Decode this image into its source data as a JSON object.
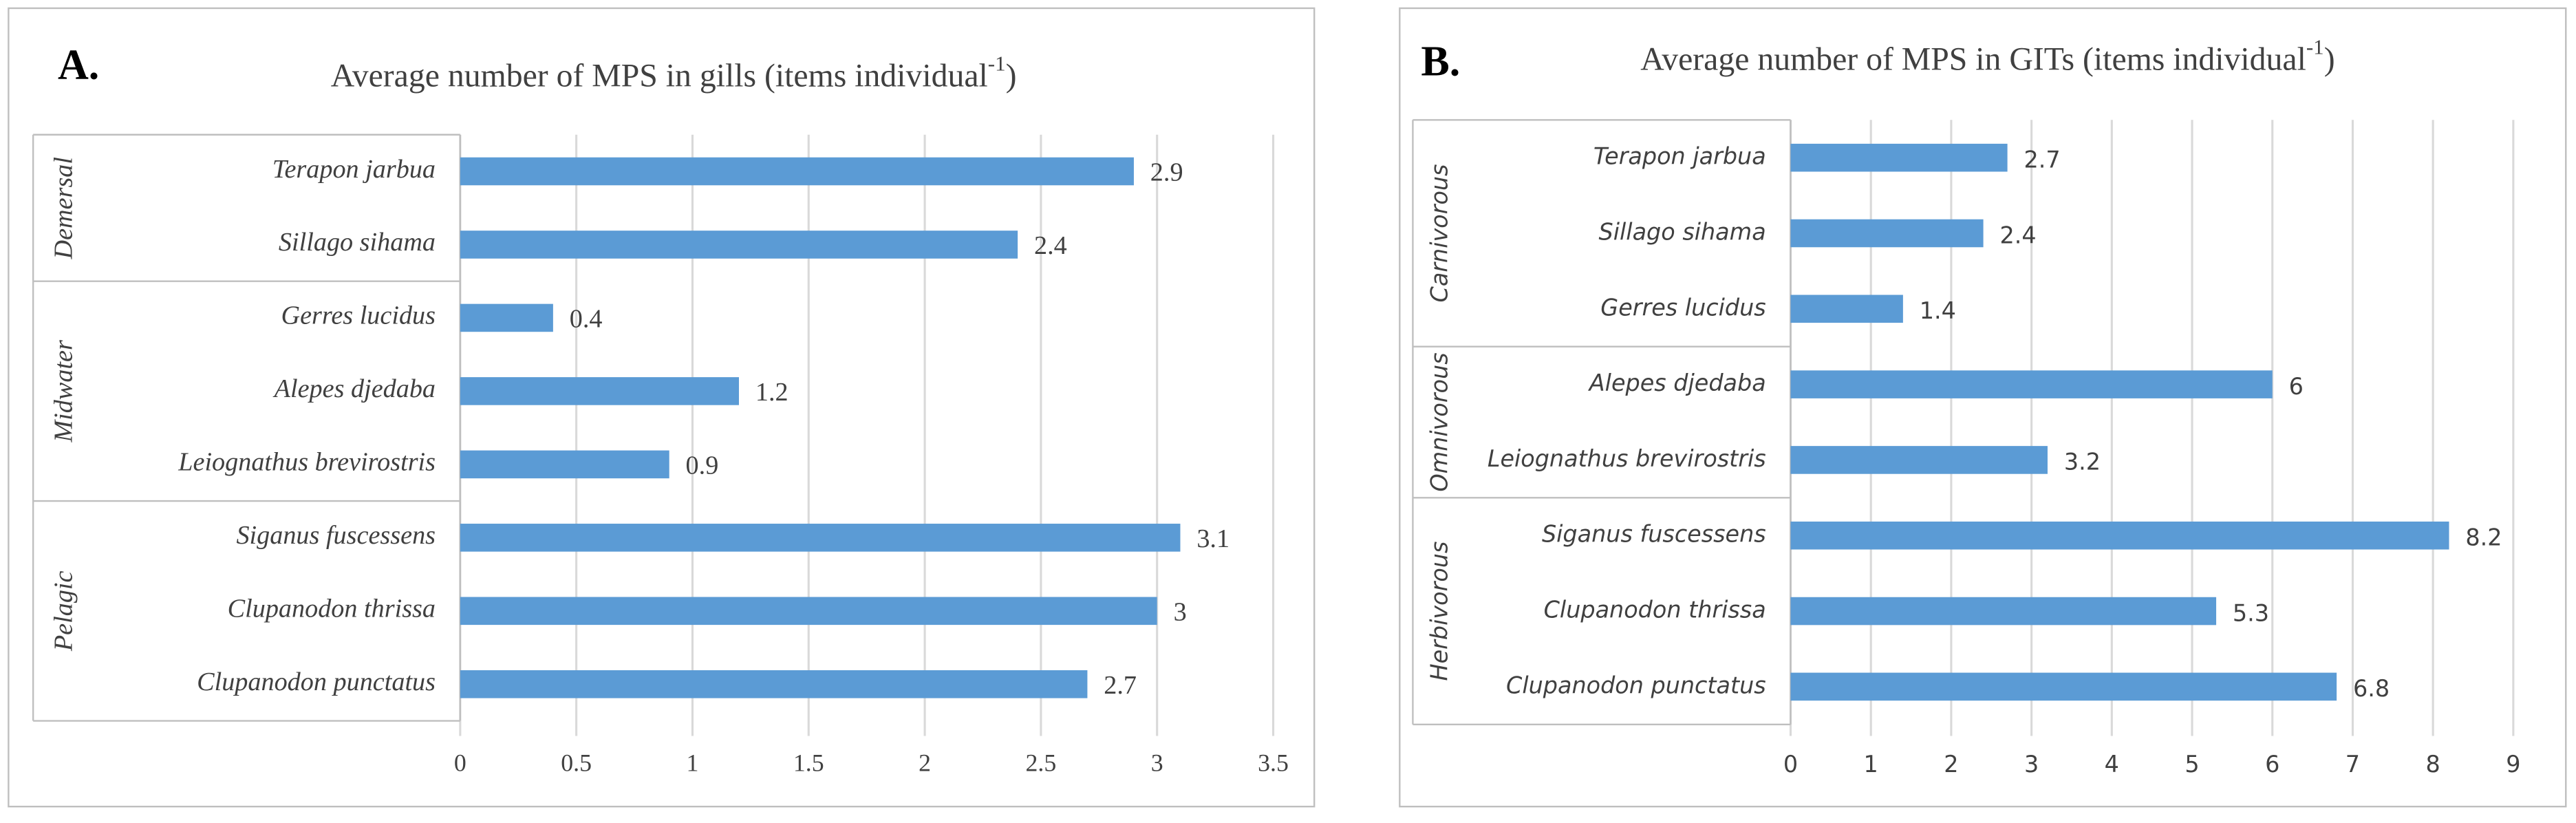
{
  "chart_data": [
    {
      "type": "hbar",
      "panel": "A.",
      "title": {
        "text": "Average number  of MPS in gills (items individual",
        "superscript": "-1",
        "end": ")"
      },
      "groups": [
        {
          "name": "Demersal",
          "categories": [
            "Terapon jarbua",
            "Sillago sihama"
          ],
          "values": [
            2.9,
            2.4
          ]
        },
        {
          "name": "Midwater",
          "categories": [
            "Gerres lucidus",
            "Alepes djedaba",
            "Leiognathus brevirostris"
          ],
          "values": [
            0.4,
            1.2,
            0.9
          ]
        },
        {
          "name": "Pelagic",
          "categories": [
            "Siganus fuscessens",
            "Clupanodon thrissa",
            "Clupanodon punctatus"
          ],
          "values": [
            3.1,
            3,
            2.7
          ]
        }
      ],
      "color": "#5b9bd5",
      "xlim": [
        0,
        3.5
      ],
      "xticks": [
        0,
        0.5,
        1,
        1.5,
        2,
        2.5,
        3,
        3.5
      ],
      "grid": true
    },
    {
      "type": "hbar",
      "panel": "B.",
      "title": {
        "text": "Average number  of MPS in GITs (items individual",
        "superscript": "-1",
        "end": ")"
      },
      "groups": [
        {
          "name": "Carnivorous",
          "categories": [
            "Terapon jarbua",
            "Sillago sihama",
            "Gerres lucidus"
          ],
          "values": [
            2.7,
            2.4,
            1.4
          ]
        },
        {
          "name": "Omnivorous",
          "categories": [
            "Alepes djedaba",
            "Leiognathus brevirostris"
          ],
          "values": [
            6,
            3.2
          ]
        },
        {
          "name": "Herbivorous",
          "categories": [
            "Siganus fuscessens",
            "Clupanodon thrissa",
            "Clupanodon punctatus"
          ],
          "values": [
            8.2,
            5.3,
            6.8
          ]
        }
      ],
      "color": "#5b9bd5",
      "xlim": [
        0,
        9
      ],
      "xticks": [
        0,
        1,
        2,
        3,
        4,
        5,
        6,
        7,
        8,
        9
      ],
      "grid": true
    }
  ]
}
